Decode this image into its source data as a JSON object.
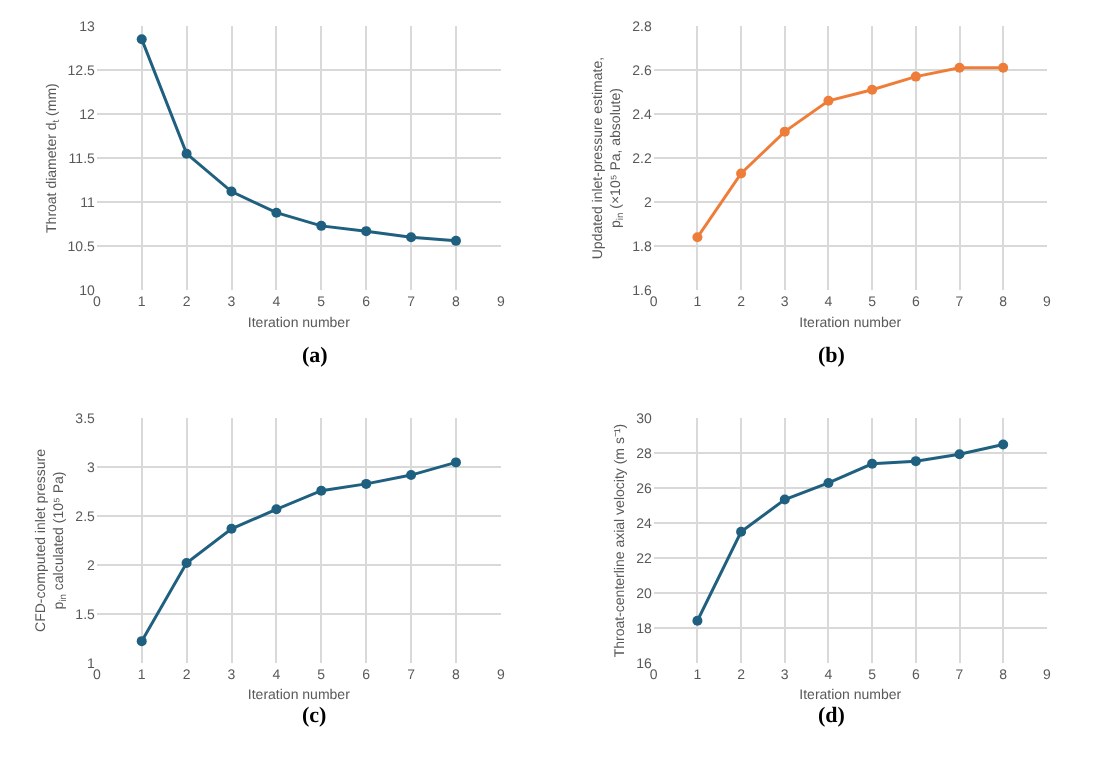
{
  "chart_data": [
    {
      "type": "line",
      "xlabel": "Iteration number",
      "ylabel": "Throat diameter d$_{t}$ (mm)",
      "annotations": [
        "(a)"
      ],
      "x": [
        1,
        2,
        3,
        4,
        5,
        6,
        7,
        8
      ],
      "xlim": [
        0,
        9
      ],
      "xticks": [
        0,
        1,
        2,
        3,
        4,
        5,
        6,
        7,
        8,
        9
      ],
      "ylim": [
        10,
        13
      ],
      "yticks": [
        10,
        10.5,
        11,
        11.5,
        12,
        12.5,
        13
      ],
      "grid": true,
      "marker": "circle",
      "series": [
        {
          "color": "#1f5f7f",
          "values": [
            12.85,
            11.55,
            11.12,
            10.88,
            10.73,
            10.67,
            10.6,
            10.56
          ]
        }
      ]
    },
    {
      "type": "line",
      "xlabel": "Iteration number",
      "ylabel": "Updated inlet-pressure estimate,\np$_{in}$ (×10⁵ Pa, absolute)",
      "annotations": [
        "(b)"
      ],
      "x": [
        1,
        2,
        3,
        4,
        5,
        6,
        7,
        8
      ],
      "xlim": [
        0,
        9
      ],
      "xticks": [
        0,
        1,
        2,
        3,
        4,
        5,
        6,
        7,
        8,
        9
      ],
      "ylim": [
        1.6,
        2.8
      ],
      "yticks": [
        1.6,
        1.8,
        2,
        2.2,
        2.4,
        2.6,
        2.8
      ],
      "grid": true,
      "marker": "circle",
      "series": [
        {
          "color": "#ee7d3a",
          "values": [
            1.84,
            2.13,
            2.32,
            2.46,
            2.51,
            2.57,
            2.61,
            2.61
          ]
        }
      ]
    },
    {
      "type": "line",
      "xlabel": "Iteration number",
      "ylabel": "CFD-computed inlet pressure\np$_{in}$ calculated (10⁵ Pa)",
      "annotations": [
        "(c)"
      ],
      "x": [
        1,
        2,
        3,
        4,
        5,
        6,
        7,
        8
      ],
      "xlim": [
        0,
        9
      ],
      "xticks": [
        0,
        1,
        2,
        3,
        4,
        5,
        6,
        7,
        8,
        9
      ],
      "ylim": [
        1,
        3.5
      ],
      "yticks": [
        1,
        1.5,
        2,
        2.5,
        3,
        3.5
      ],
      "grid": true,
      "marker": "circle",
      "series": [
        {
          "color": "#1f5f7f",
          "values": [
            1.22,
            2.02,
            2.37,
            2.57,
            2.76,
            2.83,
            2.92,
            3.05
          ]
        }
      ]
    },
    {
      "type": "line",
      "xlabel": "Iteration number",
      "ylabel": "Throat-centerline axial velocity (m s⁻¹)",
      "annotations": [
        "(d)"
      ],
      "x": [
        1,
        2,
        3,
        4,
        5,
        6,
        7,
        8
      ],
      "xlim": [
        0,
        9
      ],
      "xticks": [
        0,
        1,
        2,
        3,
        4,
        5,
        6,
        7,
        8,
        9
      ],
      "ylim": [
        16,
        30
      ],
      "yticks": [
        16,
        18,
        20,
        22,
        24,
        26,
        28,
        30
      ],
      "grid": true,
      "marker": "circle",
      "series": [
        {
          "color": "#1f5f7f",
          "values": [
            18.4,
            23.5,
            25.35,
            26.3,
            27.4,
            27.55,
            27.95,
            28.5
          ]
        }
      ]
    }
  ]
}
